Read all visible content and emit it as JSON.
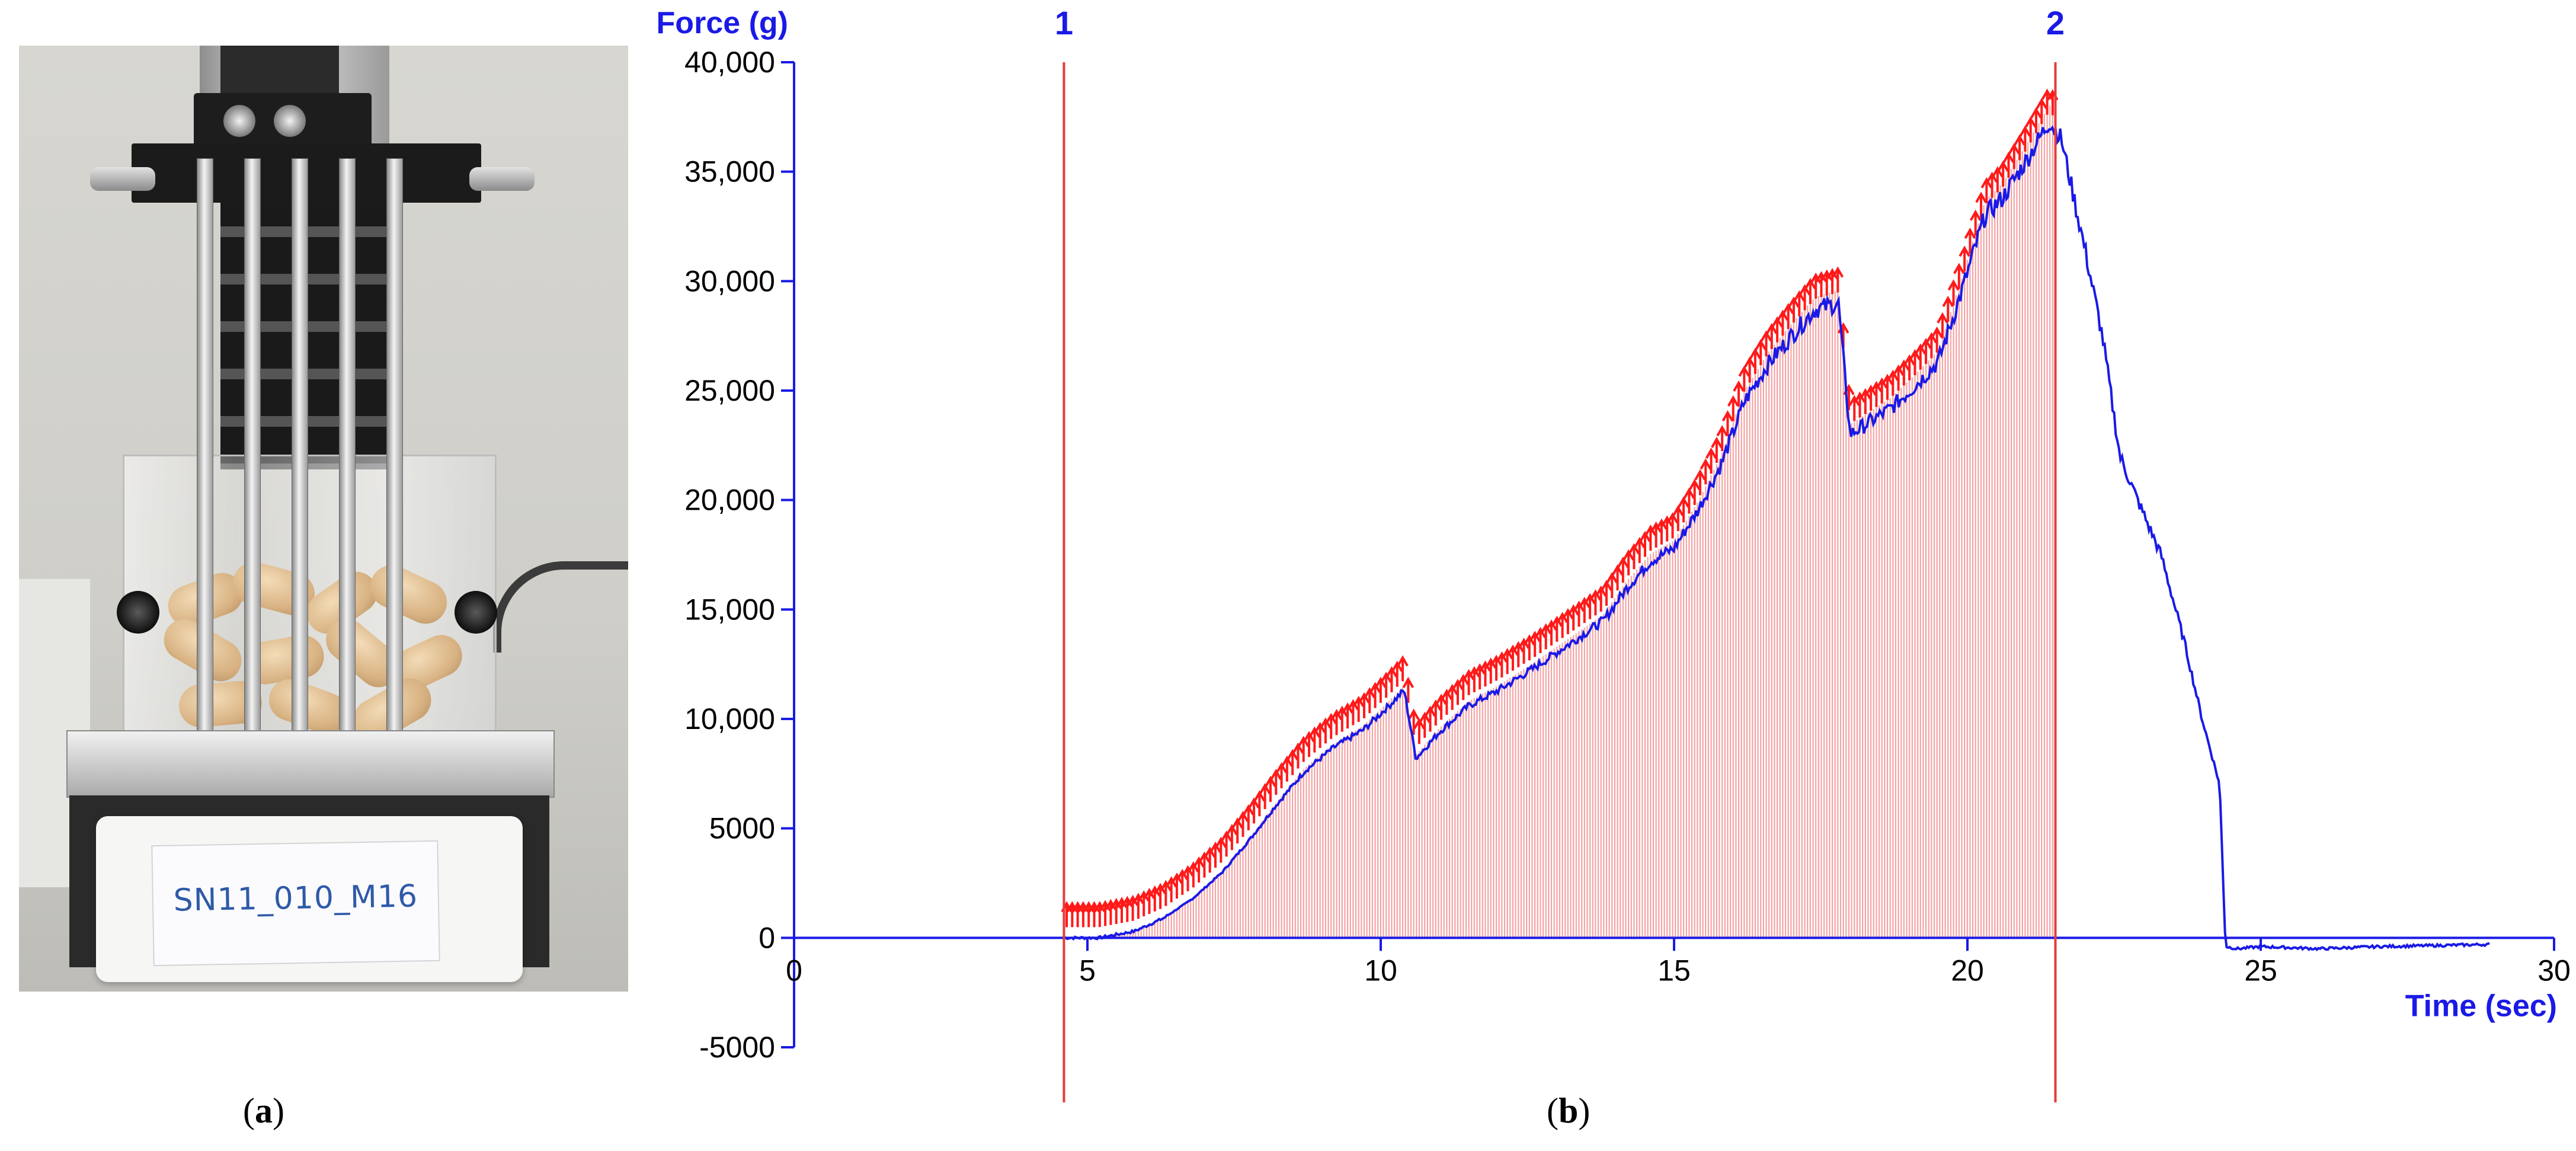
{
  "panels": {
    "a": {
      "label": "(a)",
      "letter": "a",
      "sample_label": "SN11_010_M16"
    },
    "b": {
      "label": "(b)",
      "letter": "b"
    }
  },
  "colors": {
    "axis": "#1a1ae6",
    "force_curve": "#1a1ae6",
    "markers": "#e63a3a",
    "fill": "#f4a3a3",
    "peak_arrows": "#ff1a1a"
  },
  "chart_data": {
    "type": "line",
    "ylabel": "Force (g)",
    "xlabel": "Time (sec)",
    "xlim": [
      0,
      30
    ],
    "ylim": [
      -5000,
      40000
    ],
    "x_ticks": [
      0,
      5,
      10,
      15,
      20,
      25,
      30
    ],
    "x_tick_labels": [
      "0",
      "5",
      "10",
      "15",
      "20",
      "25",
      "30"
    ],
    "y_ticks": [
      -5000,
      0,
      5000,
      10000,
      15000,
      20000,
      25000,
      30000,
      35000,
      40000
    ],
    "y_tick_labels": [
      "-5000",
      "0",
      "5000",
      "10,000",
      "15,000",
      "20,000",
      "25,000",
      "30,000",
      "35,000",
      "40,000"
    ],
    "grid": false,
    "markers": [
      {
        "label": "1",
        "x": 4.6
      },
      {
        "label": "2",
        "x": 21.5
      }
    ],
    "shaded_region": [
      4.6,
      21.5
    ],
    "series": [
      {
        "x": [
          4.6,
          5.2,
          5.8,
          6.3,
          6.8,
          7.3,
          7.8,
          8.2,
          8.7,
          9.2,
          9.7,
          10.1,
          10.4,
          10.6,
          11.0,
          11.5,
          12.0,
          12.6,
          13.2,
          13.8,
          14.2,
          14.6,
          15.0,
          15.4,
          15.8,
          16.2,
          16.6,
          17.0,
          17.4,
          17.8,
          18.0,
          18.3,
          18.7,
          19.1,
          19.5,
          19.9,
          20.3,
          20.6,
          21.0,
          21.4,
          21.6,
          21.8,
          22.0,
          22.3,
          22.6,
          22.9,
          23.3,
          23.7,
          24.0,
          24.3,
          24.4,
          24.6,
          25.0,
          26.0,
          27.0,
          28.0,
          28.9
        ],
        "y": [
          0,
          0,
          300,
          900,
          1800,
          3000,
          4600,
          6000,
          7600,
          8700,
          9500,
          10500,
          11300,
          8200,
          9400,
          10600,
          11300,
          12300,
          13400,
          14500,
          16000,
          17200,
          17800,
          19500,
          21600,
          24500,
          26200,
          27500,
          28700,
          29000,
          23000,
          23500,
          24200,
          25200,
          26300,
          29500,
          33000,
          33800,
          35500,
          37300,
          36500,
          34000,
          31500,
          27500,
          22000,
          20000,
          17500,
          13500,
          10000,
          7000,
          -400,
          -500,
          -400,
          -500,
          -400,
          -350,
          -300
        ]
      }
    ],
    "peak_flags_count": 180
  }
}
